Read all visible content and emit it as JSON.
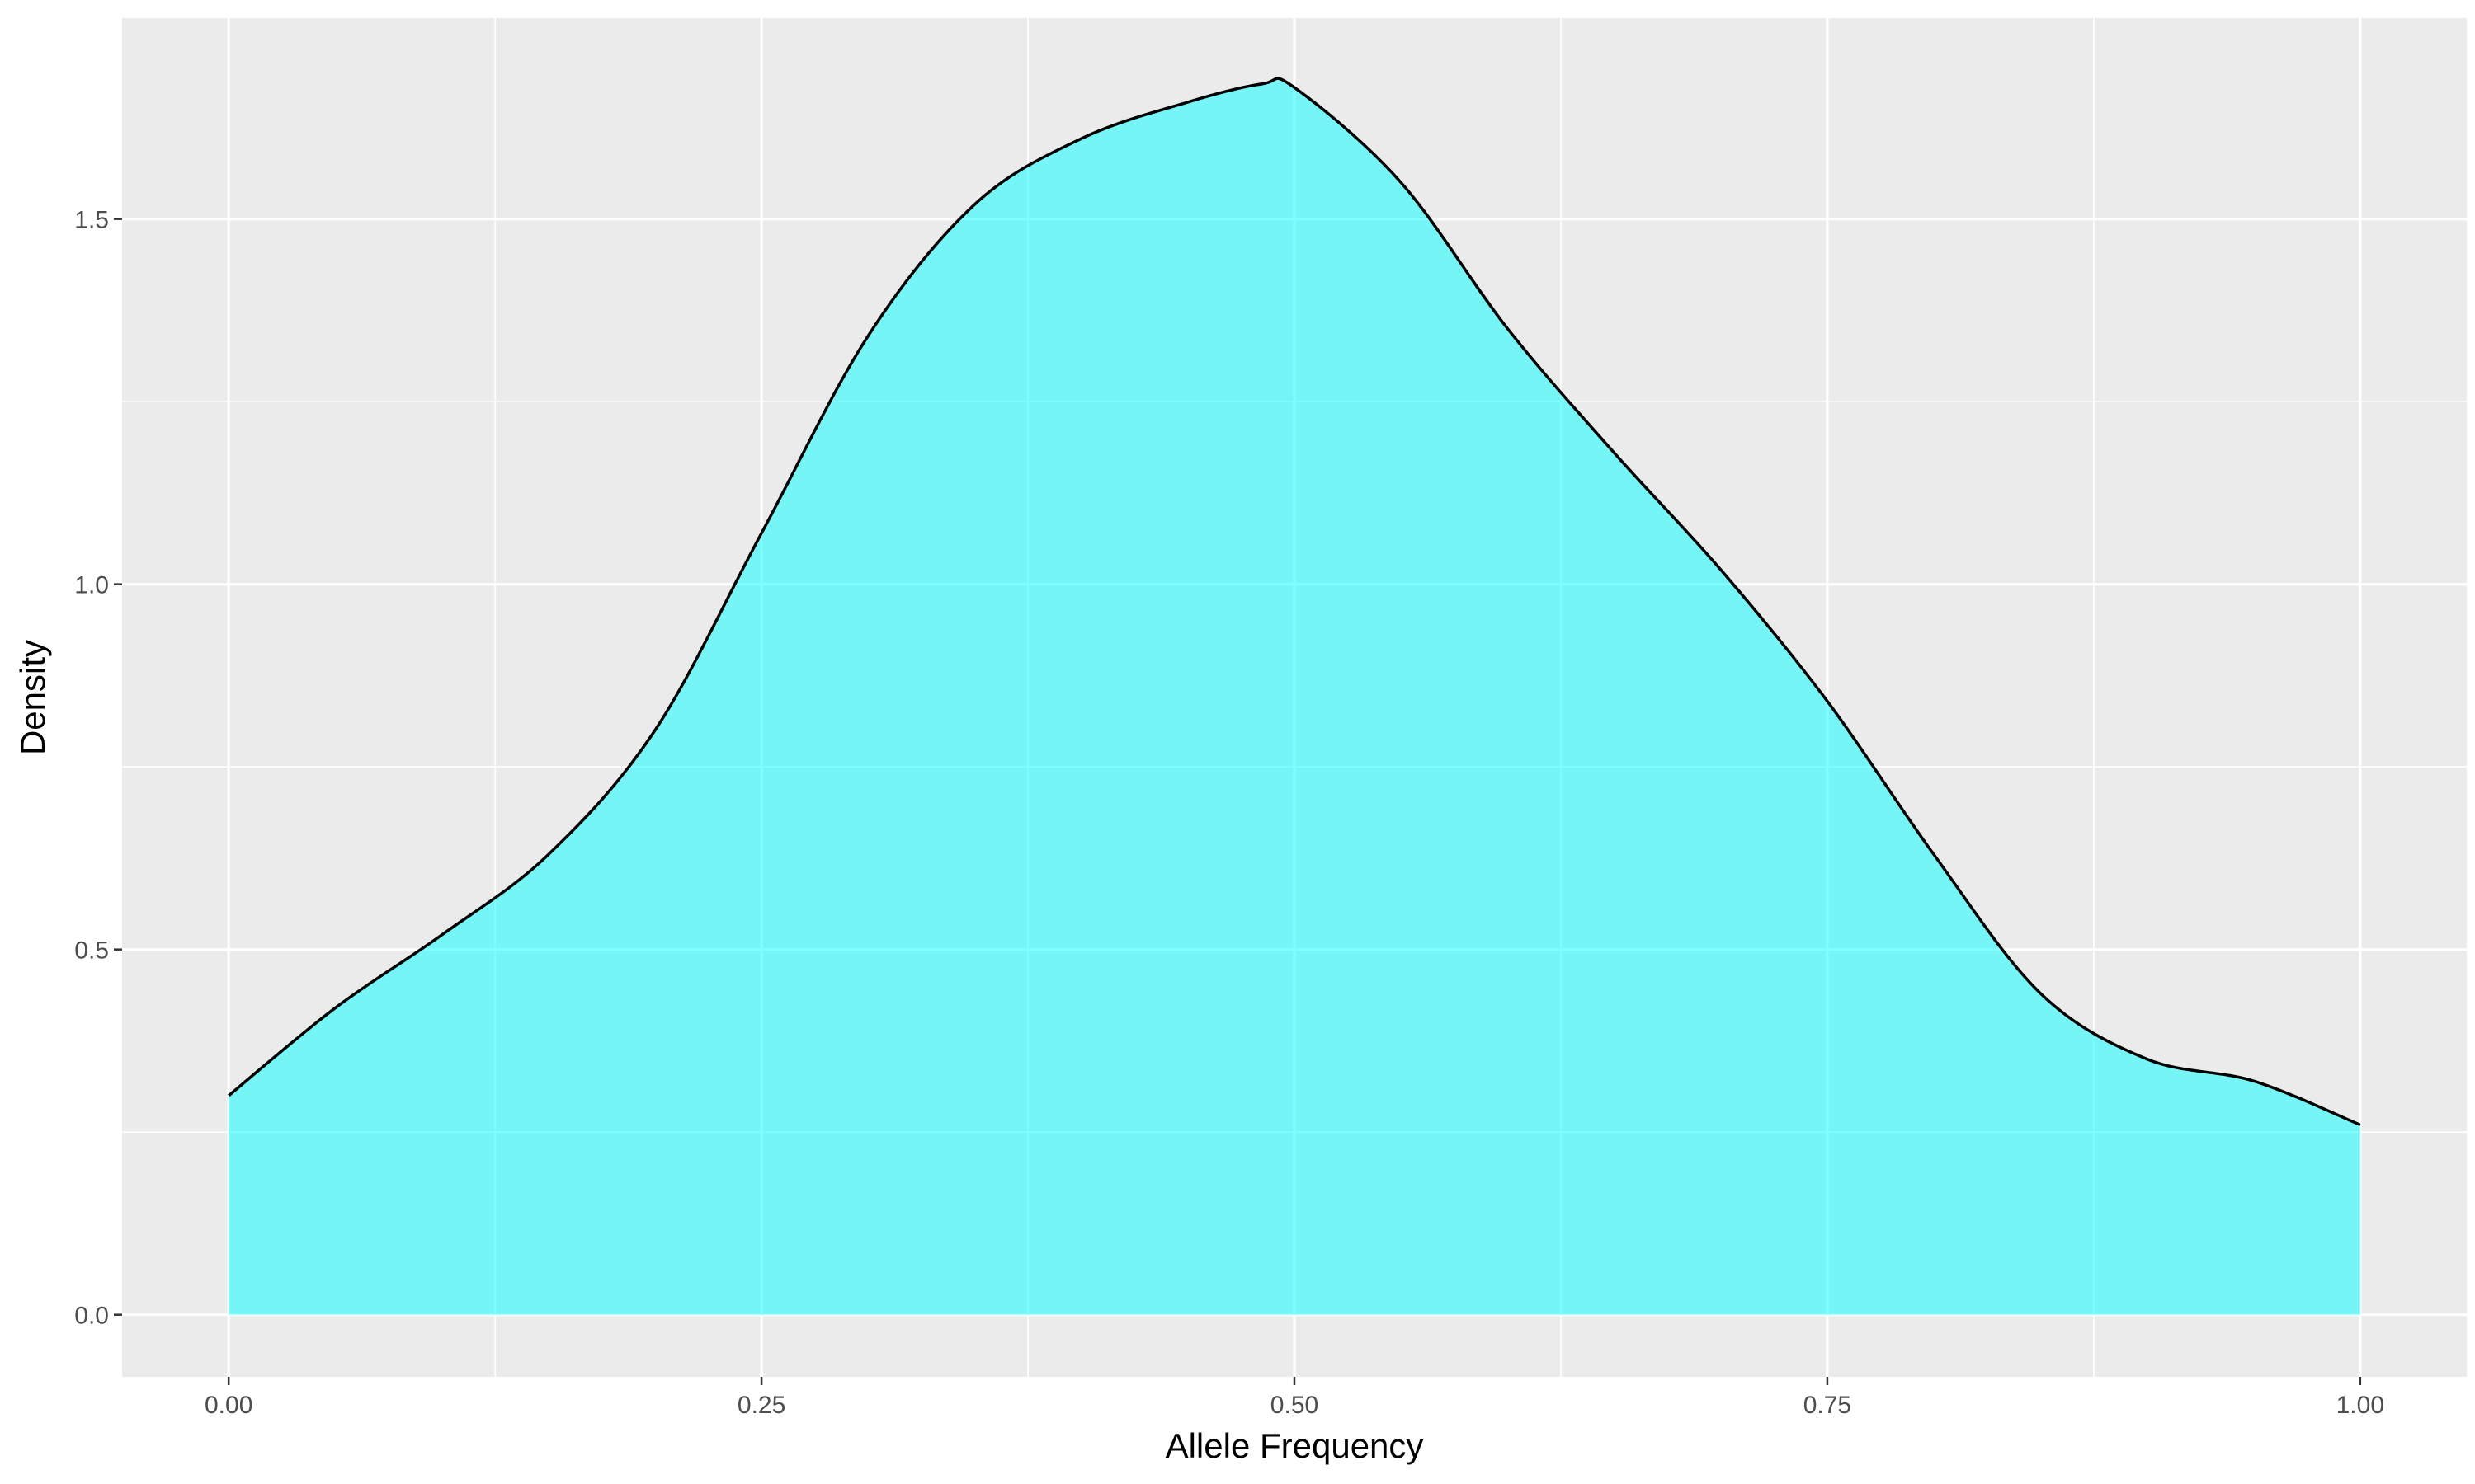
{
  "chart_data": {
    "type": "area",
    "title": "",
    "xlabel": "Allele Frequency",
    "ylabel": "Density",
    "xlim": [
      -0.05,
      1.05
    ],
    "ylim": [
      -0.085,
      1.775
    ],
    "x_ticks": [
      {
        "value": 0.0,
        "label": "0.00"
      },
      {
        "value": 0.25,
        "label": "0.25"
      },
      {
        "value": 0.5,
        "label": "0.50"
      },
      {
        "value": 0.75,
        "label": "0.75"
      },
      {
        "value": 1.0,
        "label": "1.00"
      }
    ],
    "y_ticks": [
      {
        "value": 0.0,
        "label": "0.0"
      },
      {
        "value": 0.5,
        "label": "0.5"
      },
      {
        "value": 1.0,
        "label": "1.0"
      },
      {
        "value": 1.5,
        "label": "1.5"
      }
    ],
    "grid": true,
    "legend": "none",
    "colors": {
      "panel": "#EBEBEB",
      "grid": "#FFFFFF",
      "fill": "#00FFFF",
      "fill_opacity": 0.5,
      "line": "#000000",
      "tick_text": "#4D4D4D",
      "tick_mark": "#333333"
    },
    "series": [
      {
        "x": [
          0.0,
          0.05,
          0.1,
          0.15,
          0.2,
          0.25,
          0.3,
          0.35,
          0.4,
          0.45,
          0.485,
          0.5,
          0.55,
          0.6,
          0.65,
          0.7,
          0.75,
          0.8,
          0.85,
          0.9,
          0.95,
          1.0
        ],
        "y": [
          0.3,
          0.42,
          0.52,
          0.63,
          0.8,
          1.07,
          1.34,
          1.52,
          1.61,
          1.66,
          1.685,
          1.68,
          1.55,
          1.35,
          1.18,
          1.02,
          0.84,
          0.63,
          0.44,
          0.35,
          0.32,
          0.26
        ]
      }
    ]
  }
}
